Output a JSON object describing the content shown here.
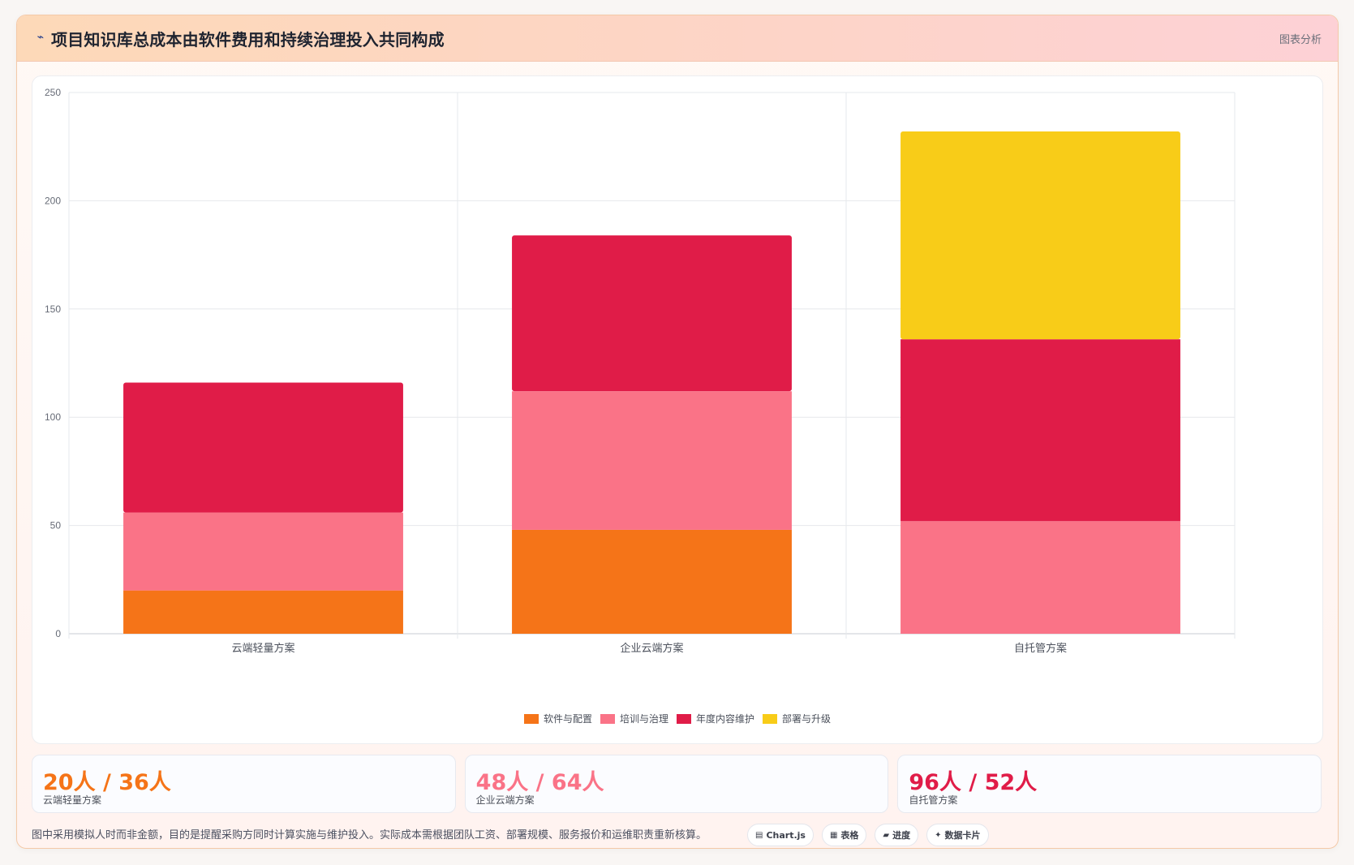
{
  "header": {
    "icon": "chart-line-icon",
    "title": "项目知识库总成本由软件费用和持续治理投入共同构成",
    "link_label": "图表分析"
  },
  "chart_data": {
    "type": "bar",
    "stacked": true,
    "categories": [
      "云端轻量方案",
      "企业云端方案",
      "自托管方案"
    ],
    "ylim": [
      0,
      250
    ],
    "yticks": [
      0,
      50,
      100,
      150,
      200,
      250
    ],
    "grid": true,
    "legend_position": "bottom",
    "series": [
      {
        "name": "软件与配置",
        "color": "#f57418",
        "values": [
          20,
          48,
          0
        ]
      },
      {
        "name": "培训与治理",
        "color": "#fa7387",
        "values": [
          36,
          64,
          52
        ]
      },
      {
        "name": "年度内容维护",
        "color": "#e01c48",
        "values": [
          60,
          72,
          84
        ]
      },
      {
        "name": "部署与升级",
        "color": "#f8cc18",
        "values": [
          0,
          0,
          96
        ]
      }
    ]
  },
  "stats": [
    {
      "value": "20人 / 36人",
      "label": "云端轻量方案",
      "color": "#f57418"
    },
    {
      "value": "48人 / 64人",
      "label": "企业云端方案",
      "color": "#fa7387"
    },
    {
      "value": "96人 / 52人",
      "label": "自托管方案",
      "color": "#e01c48"
    }
  ],
  "footer": {
    "note": "图中采用模拟人时而非金额，目的是提醒采购方同时计算实施与维护投入。实际成本需根据团队工资、部署规模、服务报价和运维职责重新核算。",
    "chips": [
      {
        "icon": "chart-icon",
        "glyph": "▤",
        "label": "Chart.js"
      },
      {
        "icon": "table-icon",
        "glyph": "▦",
        "label": "表格"
      },
      {
        "icon": "progress-icon",
        "glyph": "▰",
        "label": "进度"
      },
      {
        "icon": "sparkle-icon",
        "glyph": "✦",
        "label": "数据卡片"
      }
    ]
  }
}
